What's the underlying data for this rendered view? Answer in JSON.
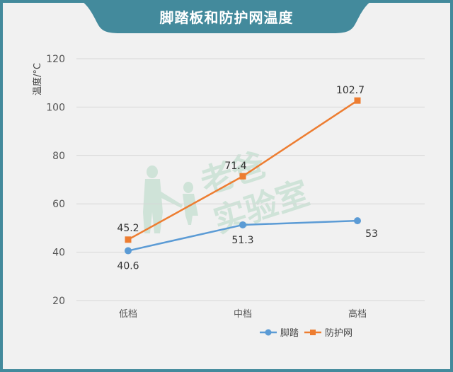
{
  "title": "脚踏板和防护网温度",
  "colors": {
    "frame": "#438a9c",
    "background": "#f1f1f1",
    "series_blue": "#5b9bd5",
    "series_orange": "#ed7d31",
    "watermark": "#cfe3d8"
  },
  "watermark": {
    "line1": "老爸",
    "line2": "实验室"
  },
  "chart_data": {
    "type": "line",
    "title": "脚踏板和防护网温度",
    "xlabel": "",
    "ylabel": "温度/°C",
    "categories": [
      "低档",
      "中档",
      "高档"
    ],
    "series": [
      {
        "name": "脚踏",
        "values": [
          40.6,
          51.3,
          53
        ],
        "color": "#5b9bd5",
        "marker": "circle"
      },
      {
        "name": "防护网",
        "values": [
          45.2,
          71.4,
          102.7
        ],
        "color": "#ed7d31",
        "marker": "square"
      }
    ],
    "ylim": [
      20,
      120
    ],
    "yticks": [
      20,
      40,
      60,
      80,
      100,
      120
    ],
    "grid": true,
    "legend_position": "bottom-right",
    "data_labels": true
  }
}
